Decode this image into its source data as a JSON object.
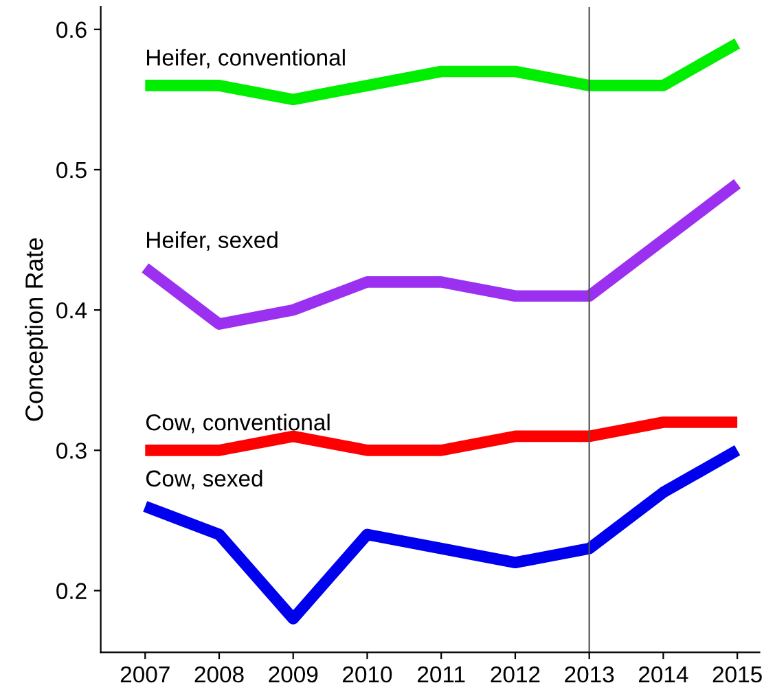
{
  "chart_data": {
    "type": "line",
    "ylabel": "Conception Rate",
    "x": [
      2007,
      2008,
      2009,
      2010,
      2011,
      2012,
      2013,
      2014,
      2015
    ],
    "series": [
      {
        "name": "Heifer, conventional",
        "color": "#00ee00",
        "values": [
          0.56,
          0.56,
          0.55,
          0.56,
          0.57,
          0.57,
          0.56,
          0.56,
          0.59
        ]
      },
      {
        "name": "Heifer, sexed",
        "color": "#9b30f0",
        "values": [
          0.43,
          0.39,
          0.4,
          0.42,
          0.42,
          0.41,
          0.41,
          0.45,
          0.49
        ]
      },
      {
        "name": "Cow, conventional",
        "color": "#ff0000",
        "values": [
          0.3,
          0.3,
          0.31,
          0.3,
          0.3,
          0.31,
          0.31,
          0.32,
          0.32
        ]
      },
      {
        "name": "Cow, sexed",
        "color": "#0000ee",
        "values": [
          0.26,
          0.24,
          0.18,
          0.24,
          0.23,
          0.22,
          0.23,
          0.27,
          0.3
        ]
      }
    ],
    "xlim": [
      2006.4,
      2015.3
    ],
    "xticks": [
      2007,
      2008,
      2009,
      2010,
      2011,
      2012,
      2013,
      2014,
      2015
    ],
    "ylim": [
      0.156,
      0.616
    ],
    "yticks": [
      0.2,
      0.3,
      0.4,
      0.5,
      0.6
    ],
    "ref_lines": [
      {
        "axis": "x",
        "value": 2013,
        "color": "#555555"
      }
    ],
    "grid": false,
    "legend": false,
    "marker": "none",
    "line_style": "solid"
  }
}
